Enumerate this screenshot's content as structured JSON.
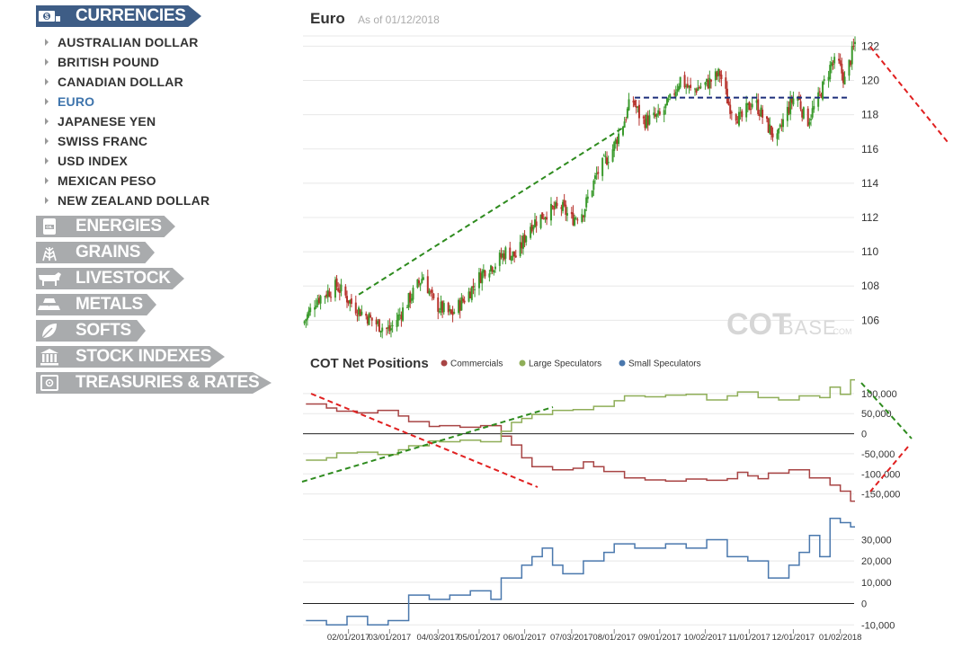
{
  "sidebar": {
    "active_category": {
      "label": "CURRENCIES",
      "icon": "currency-money-icon"
    },
    "items": [
      {
        "label": "AUSTRALIAN DOLLAR"
      },
      {
        "label": "BRITISH POUND"
      },
      {
        "label": "CANADIAN DOLLAR"
      },
      {
        "label": "EURO",
        "selected": true
      },
      {
        "label": "JAPANESE YEN"
      },
      {
        "label": "SWISS FRANC"
      },
      {
        "label": "USD INDEX"
      },
      {
        "label": "MEXICAN PESO"
      },
      {
        "label": "NEW ZEALAND DOLLAR"
      }
    ],
    "categories": [
      {
        "label": "ENERGIES",
        "icon": "oil-barrel-icon"
      },
      {
        "label": "GRAINS",
        "icon": "wheat-icon"
      },
      {
        "label": "LIVESTOCK",
        "icon": "cow-icon"
      },
      {
        "label": "METALS",
        "icon": "gold-bars-icon"
      },
      {
        "label": "SOFTS",
        "icon": "leaf-icon"
      },
      {
        "label": "STOCK INDEXES",
        "icon": "bank-building-icon"
      },
      {
        "label": "TREASURIES & RATES",
        "icon": "safe-icon"
      }
    ]
  },
  "header": {
    "title": "Euro",
    "subtitle": "As of 01/12/2018"
  },
  "watermark": {
    "bold": "COT",
    "light": "BASE",
    "suffix": ".COM"
  },
  "colors": {
    "accent": "#3e5d86",
    "category_grey": "#a9abad",
    "selected_item": "#3e74ac",
    "candle_up": "#3a9a2c",
    "candle_down": "#b7322c",
    "commercials": "#a84444",
    "large_speculators": "#8fae58",
    "small_speculators": "#4a78ad",
    "trend_green": "#2e8b1e",
    "trend_red": "#e02020",
    "resistance": "#1c2d7a"
  },
  "chart_data": [
    {
      "type": "candlestick",
      "title": "Euro",
      "y_ticks": [
        106,
        108,
        110,
        112,
        114,
        116,
        118,
        120,
        122
      ],
      "ylim": [
        104.6,
        122.6
      ],
      "x_range": [
        "2017-01-01",
        "2018-01-12"
      ],
      "close_anchors": [
        [
          "2017-01-01",
          105.8
        ],
        [
          "2017-01-10",
          107.2
        ],
        [
          "2017-01-24",
          108.0
        ],
        [
          "2017-02-05",
          106.8
        ],
        [
          "2017-02-20",
          105.8
        ],
        [
          "2017-03-01",
          105.4
        ],
        [
          "2017-03-10",
          106.6
        ],
        [
          "2017-03-24",
          108.6
        ],
        [
          "2017-03-31",
          107.0
        ],
        [
          "2017-04-12",
          106.3
        ],
        [
          "2017-04-24",
          107.6
        ],
        [
          "2017-05-05",
          109.0
        ],
        [
          "2017-05-12",
          109.3
        ],
        [
          "2017-05-19",
          110.0
        ],
        [
          "2017-05-27",
          109.7
        ],
        [
          "2017-06-04",
          111.5
        ],
        [
          "2017-06-16",
          112.3
        ],
        [
          "2017-06-26",
          112.6
        ],
        [
          "2017-07-03",
          111.9
        ],
        [
          "2017-07-11",
          112.4
        ],
        [
          "2017-07-20",
          114.5
        ],
        [
          "2017-07-31",
          116.0
        ],
        [
          "2017-08-08",
          117.7
        ],
        [
          "2017-08-13",
          119.0
        ],
        [
          "2017-08-20",
          117.6
        ],
        [
          "2017-09-01",
          117.9
        ],
        [
          "2017-09-08",
          118.8
        ],
        [
          "2017-09-15",
          120.1
        ],
        [
          "2017-09-22",
          119.4
        ],
        [
          "2017-10-03",
          119.8
        ],
        [
          "2017-10-12",
          120.4
        ],
        [
          "2017-10-18",
          118.6
        ],
        [
          "2017-10-26",
          117.7
        ],
        [
          "2017-11-04",
          118.9
        ],
        [
          "2017-11-13",
          117.4
        ],
        [
          "2017-11-20",
          116.5
        ],
        [
          "2017-11-25",
          117.9
        ],
        [
          "2017-12-03",
          119.3
        ],
        [
          "2017-12-10",
          117.5
        ],
        [
          "2017-12-18",
          118.9
        ],
        [
          "2017-12-27",
          121.0
        ],
        [
          "2018-01-01",
          120.9
        ],
        [
          "2018-01-05",
          120.0
        ],
        [
          "2018-01-12",
          122.2
        ]
      ],
      "resistance_level": 119.0,
      "resistance_range": [
        "2017-08-15",
        "2018-01-08"
      ],
      "trendline_green": [
        [
          "2017-02-08",
          107.5
        ],
        [
          "2017-08-08",
          117.3
        ]
      ],
      "trendline_red_slope": "declining"
    },
    {
      "type": "line",
      "title": "COT Net Positions",
      "y_ticks": [
        -150000,
        -100000,
        -50000,
        0,
        50000,
        100000
      ],
      "y_tick_labels": [
        "-150,000",
        "-100,000",
        "-50,000",
        "0",
        "50,000",
        "100,000"
      ],
      "ylim": [
        -180000,
        140000
      ],
      "series": [
        {
          "name": "Commercials",
          "color": "#a84444",
          "points": [
            [
              "2017-01-03",
              74000
            ],
            [
              "2017-01-17",
              64000
            ],
            [
              "2017-01-24",
              56000
            ],
            [
              "2017-02-07",
              52000
            ],
            [
              "2017-02-21",
              58000
            ],
            [
              "2017-03-07",
              44000
            ],
            [
              "2017-03-14",
              30000
            ],
            [
              "2017-03-28",
              18000
            ],
            [
              "2017-04-04",
              20000
            ],
            [
              "2017-04-18",
              16000
            ],
            [
              "2017-05-02",
              20000
            ],
            [
              "2017-05-16",
              -6000
            ],
            [
              "2017-05-23",
              -28000
            ],
            [
              "2017-05-30",
              -60000
            ],
            [
              "2017-06-06",
              -82000
            ],
            [
              "2017-06-20",
              -90000
            ],
            [
              "2017-07-04",
              -86000
            ],
            [
              "2017-07-11",
              -70000
            ],
            [
              "2017-07-18",
              -82000
            ],
            [
              "2017-07-25",
              -94000
            ],
            [
              "2017-08-08",
              -110000
            ],
            [
              "2017-08-22",
              -115000
            ],
            [
              "2017-09-05",
              -118000
            ],
            [
              "2017-09-19",
              -113000
            ],
            [
              "2017-10-03",
              -116000
            ],
            [
              "2017-10-17",
              -112000
            ],
            [
              "2017-10-24",
              -96000
            ],
            [
              "2017-10-31",
              -105000
            ],
            [
              "2017-11-07",
              -112000
            ],
            [
              "2017-11-14",
              -98000
            ],
            [
              "2017-11-28",
              -90000
            ],
            [
              "2017-12-12",
              -110000
            ],
            [
              "2017-12-26",
              -128000
            ],
            [
              "2018-01-02",
              -143000
            ],
            [
              "2018-01-09",
              -168000
            ]
          ]
        },
        {
          "name": "Large Speculators",
          "color": "#8fae58",
          "points": [
            [
              "2017-01-03",
              -66000
            ],
            [
              "2017-01-17",
              -60000
            ],
            [
              "2017-01-24",
              -48000
            ],
            [
              "2017-02-07",
              -46000
            ],
            [
              "2017-02-21",
              -52000
            ],
            [
              "2017-03-07",
              -40000
            ],
            [
              "2017-03-14",
              -30000
            ],
            [
              "2017-03-28",
              -18000
            ],
            [
              "2017-04-04",
              -20000
            ],
            [
              "2017-04-18",
              -16000
            ],
            [
              "2017-05-02",
              -20000
            ],
            [
              "2017-05-16",
              6000
            ],
            [
              "2017-05-23",
              28000
            ],
            [
              "2017-05-30",
              38000
            ],
            [
              "2017-06-06",
              48000
            ],
            [
              "2017-06-20",
              58000
            ],
            [
              "2017-07-04",
              60000
            ],
            [
              "2017-07-18",
              68000
            ],
            [
              "2017-08-01",
              82000
            ],
            [
              "2017-08-08",
              94000
            ],
            [
              "2017-08-22",
              92000
            ],
            [
              "2017-09-05",
              96000
            ],
            [
              "2017-09-19",
              98000
            ],
            [
              "2017-10-03",
              84000
            ],
            [
              "2017-10-17",
              94000
            ],
            [
              "2017-10-24",
              104000
            ],
            [
              "2017-11-07",
              90000
            ],
            [
              "2017-11-21",
              84000
            ],
            [
              "2017-12-05",
              94000
            ],
            [
              "2017-12-19",
              90000
            ],
            [
              "2017-12-26",
              116000
            ],
            [
              "2018-01-02",
              98000
            ],
            [
              "2018-01-09",
              134000
            ]
          ]
        },
        {
          "name": "Small Speculators",
          "color": "#4a78ad",
          "points": [
            [
              "2017-01-03",
              -8000
            ],
            [
              "2017-01-17",
              -10000
            ],
            [
              "2017-01-31",
              -6000
            ],
            [
              "2017-02-14",
              -10000
            ],
            [
              "2017-02-28",
              -8000
            ],
            [
              "2017-03-14",
              4000
            ],
            [
              "2017-03-28",
              2000
            ],
            [
              "2017-04-11",
              4000
            ],
            [
              "2017-04-25",
              6000
            ],
            [
              "2017-05-09",
              2000
            ],
            [
              "2017-05-16",
              12000
            ],
            [
              "2017-05-30",
              18000
            ],
            [
              "2017-06-06",
              22000
            ],
            [
              "2017-06-13",
              26000
            ],
            [
              "2017-06-20",
              18000
            ],
            [
              "2017-06-27",
              14000
            ],
            [
              "2017-07-11",
              20000
            ],
            [
              "2017-07-25",
              24000
            ],
            [
              "2017-08-01",
              28000
            ],
            [
              "2017-08-15",
              26000
            ],
            [
              "2017-09-05",
              28000
            ],
            [
              "2017-09-19",
              26000
            ],
            [
              "2017-10-03",
              30000
            ],
            [
              "2017-10-17",
              22000
            ],
            [
              "2017-10-31",
              20000
            ],
            [
              "2017-11-14",
              12000
            ],
            [
              "2017-11-28",
              18000
            ],
            [
              "2017-12-05",
              24000
            ],
            [
              "2017-12-12",
              32000
            ],
            [
              "2017-12-19",
              22000
            ],
            [
              "2017-12-26",
              40000
            ],
            [
              "2018-01-02",
              38000
            ],
            [
              "2018-01-09",
              36000
            ]
          ]
        }
      ],
      "trendline_green": "rising",
      "trendline_red": "falling"
    },
    {
      "type": "line",
      "series_ref": "Small Speculators",
      "y_ticks": [
        -10000,
        0,
        10000,
        20000,
        30000
      ],
      "y_tick_labels": [
        "-10,000",
        "0",
        "10,000",
        "20,000",
        "30,000"
      ],
      "ylim": [
        -12000,
        42000
      ]
    }
  ],
  "x_axis": {
    "labels": [
      "02/01/2017",
      "03/01/2017",
      "04/03/2017",
      "05/01/2017",
      "06/01/2017",
      "07/03/2017",
      "08/01/2017",
      "09/01/2017",
      "10/02/2017",
      "11/01/2017",
      "12/01/2017",
      "01/02/2018"
    ],
    "dates": [
      "2017-02-01",
      "2017-03-01",
      "2017-04-03",
      "2017-05-01",
      "2017-06-01",
      "2017-07-03",
      "2017-08-01",
      "2017-09-01",
      "2017-10-02",
      "2017-11-01",
      "2017-12-01",
      "2018-01-02"
    ]
  }
}
